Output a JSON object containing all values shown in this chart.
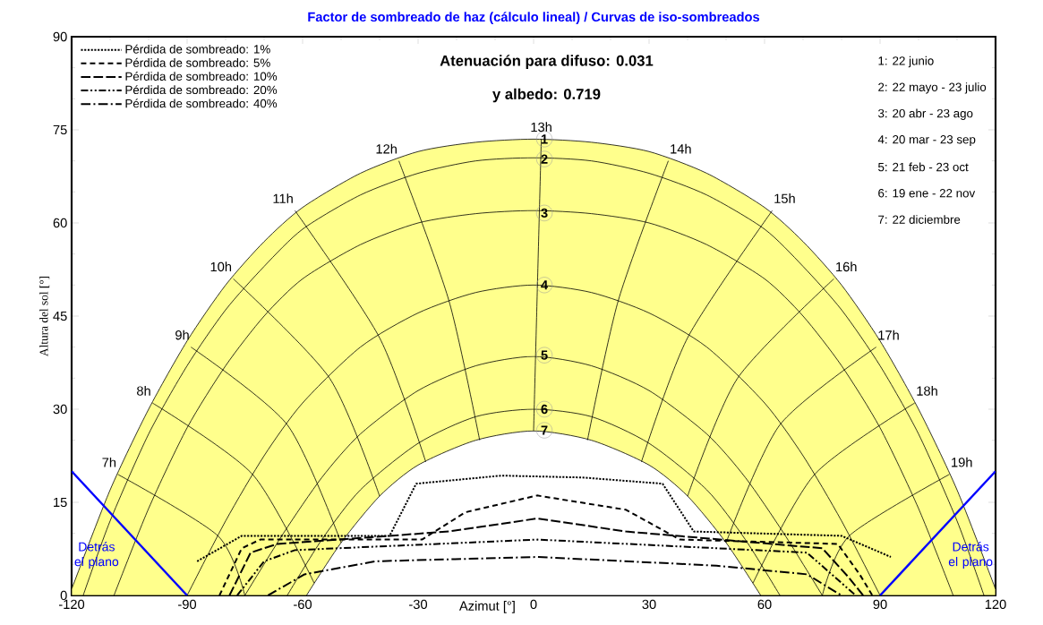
{
  "chart_data": {
    "type": "line",
    "title": "Factor de sombreado de haz (cálculo lineal) / Curvas de iso-sombreados",
    "xlabel": "Azimut [°]",
    "ylabel": "Altura del sol [°]",
    "xlim": [
      -120,
      120
    ],
    "xticks": [
      -120,
      -90,
      -60,
      -30,
      0,
      30,
      60,
      90,
      120
    ],
    "ylim": [
      0,
      90
    ],
    "yticks": [
      0,
      15,
      30,
      45,
      60,
      75,
      90
    ],
    "legend": "top left",
    "series": [
      {
        "type": "area",
        "color": "#ffff8c",
        "x": [
          -120,
          -110,
          -100,
          -90,
          -80,
          -70,
          -60,
          -45,
          -30,
          -15,
          0,
          15,
          30,
          45,
          60,
          70,
          80,
          90,
          100,
          110,
          120
        ],
        "values": [
          1,
          17,
          30,
          41,
          50,
          57,
          62.5,
          68,
          71.5,
          73,
          73.5,
          73,
          71.5,
          68,
          62.5,
          57,
          50,
          41,
          30,
          17,
          1
        ]
      },
      {
        "color": "#000000",
        "x": [
          -117,
          -110,
          -100,
          -90,
          -80,
          -70,
          -60,
          -45,
          -30,
          -15,
          0,
          15,
          30,
          45,
          60,
          70,
          80,
          90,
          100,
          110,
          117
        ],
        "values": [
          0,
          12,
          26,
          37,
          46,
          53,
          59,
          64.5,
          68,
          70,
          70.5,
          70,
          68,
          64.5,
          59,
          53,
          46,
          37,
          26,
          12,
          0
        ]
      },
      {
        "color": "#000000",
        "x": [
          -109,
          -100,
          -90,
          -80,
          -70,
          -60,
          -45,
          -30,
          -15,
          0,
          15,
          30,
          45,
          60,
          70,
          80,
          90,
          100,
          109
        ],
        "values": [
          0,
          14,
          27,
          37,
          45,
          51,
          56.5,
          60,
          61.5,
          62,
          61.5,
          60,
          56.5,
          51,
          45,
          37,
          27,
          14,
          0
        ]
      },
      {
        "color": "#000000",
        "x": [
          -90,
          -80,
          -70,
          -60,
          -45,
          -30,
          -15,
          0,
          15,
          30,
          45,
          60,
          70,
          80,
          90
        ],
        "values": [
          0,
          12,
          22.5,
          31,
          40,
          45.5,
          48.8,
          50,
          48.8,
          45.5,
          40,
          31,
          22.5,
          12,
          0
        ]
      },
      {
        "color": "#000000",
        "x": [
          -75,
          -65,
          -55,
          -45,
          -30,
          -15,
          0,
          15,
          30,
          45,
          55,
          65,
          75
        ],
        "values": [
          0,
          10,
          19,
          26,
          33,
          37,
          38.5,
          37,
          33,
          26,
          19,
          10,
          0
        ]
      },
      {
        "color": "#000000",
        "x": [
          -64,
          -55,
          -45,
          -30,
          -15,
          0,
          15,
          30,
          45,
          55,
          64
        ],
        "values": [
          0,
          9,
          17,
          24.5,
          28.8,
          30,
          28.8,
          24.5,
          17,
          9,
          0
        ]
      },
      {
        "type": "area",
        "color": "#ffffff",
        "x": [
          -59,
          -50,
          -40,
          -30,
          -15,
          0,
          15,
          30,
          40,
          50,
          59
        ],
        "values": [
          0,
          8.5,
          16,
          21,
          25,
          26.5,
          25,
          21,
          16,
          8.5,
          0
        ]
      },
      {
        "color": "#000000",
        "x": [
          -108,
          -82,
          -75
        ],
        "values": [
          19.5,
          9.6,
          0
        ]
      },
      {
        "color": "#000000",
        "x": [
          -99,
          -73,
          -57
        ],
        "values": [
          31,
          19.5,
          2
        ]
      },
      {
        "color": "#000000",
        "x": [
          -89,
          -64,
          -50
        ],
        "values": [
          40,
          27.5,
          8.5
        ]
      },
      {
        "color": "#000000",
        "x": [
          -78,
          -53,
          -40
        ],
        "values": [
          51,
          35,
          16
        ]
      },
      {
        "color": "#000000",
        "x": [
          -62,
          -40,
          -28
        ],
        "values": [
          62,
          41.5,
          21.5
        ]
      },
      {
        "color": "#000000",
        "x": [
          -35,
          -22,
          -14
        ],
        "values": [
          70,
          47.5,
          25
        ]
      },
      {
        "color": "#000000",
        "x": [
          2,
          1,
          0
        ],
        "values": [
          73.5,
          50,
          26.5
        ]
      },
      {
        "color": "#000000",
        "x": [
          35,
          22,
          14
        ],
        "values": [
          70,
          47.5,
          25
        ]
      },
      {
        "color": "#000000",
        "x": [
          62,
          40,
          28
        ],
        "values": [
          62,
          41.5,
          21.5
        ]
      },
      {
        "color": "#000000",
        "x": [
          78,
          53,
          40
        ],
        "values": [
          51,
          35,
          16
        ]
      },
      {
        "color": "#000000",
        "x": [
          89,
          64,
          50
        ],
        "values": [
          40,
          27.5,
          8.5
        ]
      },
      {
        "color": "#000000",
        "x": [
          99,
          73,
          57
        ],
        "values": [
          31,
          19.5,
          2
        ]
      },
      {
        "color": "#000000",
        "x": [
          108,
          82,
          75
        ],
        "values": [
          19.5,
          9.6,
          0
        ]
      },
      {
        "name": "Pérdida de sombreado: 1%",
        "color": "#000000",
        "line_style": "dotted",
        "x": [
          -87.4,
          -75.8,
          -37.4,
          -30.5,
          -8.4,
          12.6,
          33.5,
          41.6,
          80,
          92.8
        ],
        "values": [
          5.5,
          9.6,
          9.6,
          18,
          19.3,
          19,
          18,
          10.3,
          9.6,
          6.2
        ]
      },
      {
        "name": "Pérdida de sombreado: 5%",
        "color": "#000000",
        "line_style": "dashed",
        "x": [
          -81.6,
          -75.8,
          -71,
          -29,
          -17.7,
          0.9,
          24,
          38,
          79,
          84.7,
          88
        ],
        "values": [
          0,
          7.6,
          9,
          9,
          13.4,
          16.1,
          13.8,
          9,
          8.3,
          3.4,
          0
        ]
      },
      {
        "name": "Pérdida de sombreado: 10%",
        "color": "#000000",
        "line_style": "longdashed",
        "x": [
          -79,
          -73.5,
          -66.5,
          -22,
          1,
          24,
          75,
          82,
          85.6
        ],
        "values": [
          0,
          6.9,
          8.3,
          10.3,
          12.4,
          10.3,
          7.6,
          2.8,
          0
        ]
      },
      {
        "name": "Pérdida de sombreado: 20%",
        "color": "#000000",
        "line_style": "dashdotdotted",
        "x": [
          -77,
          -70,
          -62,
          1,
          71,
          80,
          83.7
        ],
        "values": [
          0,
          5.5,
          7.3,
          9,
          6.9,
          2,
          0
        ]
      },
      {
        "name": "Pérdida de sombreado: 40%",
        "color": "#000000",
        "line_style": "dashdotted",
        "x": [
          -69,
          -59.5,
          -41,
          1,
          47.5,
          71,
          80
        ],
        "values": [
          0,
          3.4,
          5.5,
          6.2,
          4.8,
          3.4,
          0
        ]
      },
      {
        "color": "#0000ff",
        "x": [
          -120,
          -90
        ],
        "values": [
          20,
          0
        ]
      },
      {
        "color": "#0000ff",
        "x": [
          90,
          120
        ],
        "values": [
          0,
          20
        ]
      }
    ],
    "annotations": [
      {
        "text": "7h",
        "x": -108,
        "y": 19.5
      },
      {
        "text": "8h",
        "x": -99,
        "y": 31
      },
      {
        "text": "9h",
        "x": -89,
        "y": 40
      },
      {
        "text": "10h",
        "x": -78,
        "y": 51
      },
      {
        "text": "11h",
        "x": -62,
        "y": 62
      },
      {
        "text": "12h",
        "x": -35,
        "y": 70
      },
      {
        "text": "13h",
        "x": 2,
        "y": 73.5
      },
      {
        "text": "14h",
        "x": 35,
        "y": 70
      },
      {
        "text": "15h",
        "x": 62,
        "y": 62
      },
      {
        "text": "16h",
        "x": 78,
        "y": 51
      },
      {
        "text": "17h",
        "x": 89,
        "y": 40
      },
      {
        "text": "18h",
        "x": 99,
        "y": 31
      },
      {
        "text": "19h",
        "x": 108,
        "y": 19.5
      },
      {
        "text": "1",
        "x": 2.8,
        "y": 73.5
      },
      {
        "text": "2",
        "x": 2.8,
        "y": 70.3
      },
      {
        "text": "3",
        "x": 2.8,
        "y": 61.6
      },
      {
        "text": "4",
        "x": 2.8,
        "y": 50
      },
      {
        "text": "5",
        "x": 2.8,
        "y": 38.7
      },
      {
        "text": "6",
        "x": 2.8,
        "y": 30
      },
      {
        "text": "7",
        "x": 2.8,
        "y": 26.6
      },
      "Atenuación para difuso: 0.031",
      "y albedo: 0.719",
      "1: 22 junio",
      "2: 22 mayo - 23 julio",
      "3: 20 abr - 23 ago",
      "4: 20 mar - 23 sep",
      "5: 21 feb - 23 oct",
      "6: 19 ene - 22 nov",
      "7: 22 diciembre",
      "Detrás el plano",
      "Detrás el plano"
    ]
  }
}
